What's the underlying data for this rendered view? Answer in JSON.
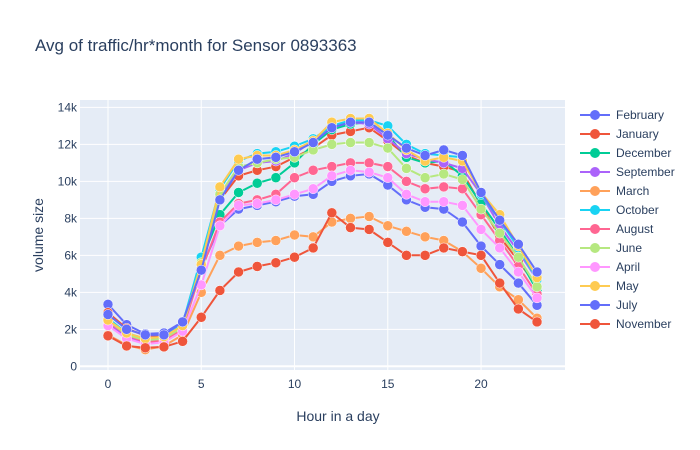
{
  "chart_data": {
    "type": "line",
    "title": "Avg of traffic/hr*month for Sensor 0893363",
    "xlabel": "Hour in a day",
    "ylabel": "volume size",
    "xlim": [
      -1.5,
      24.5
    ],
    "ylim": [
      -200,
      14400
    ],
    "xticks": [
      0,
      5,
      10,
      15,
      20
    ],
    "yticks": [
      0,
      2000,
      4000,
      6000,
      8000,
      10000,
      12000,
      14000
    ],
    "ytick_labels": [
      "0",
      "2k",
      "4k",
      "6k",
      "8k",
      "10k",
      "12k",
      "14k"
    ],
    "grid": true,
    "legend_position": "right",
    "x": [
      0,
      1,
      2,
      3,
      4,
      5,
      6,
      7,
      8,
      9,
      10,
      11,
      12,
      13,
      14,
      15,
      16,
      17,
      18,
      19,
      20,
      21,
      22,
      23
    ],
    "series": [
      {
        "name": "February",
        "color": "#636efa",
        "values": [
          3350,
          2250,
          1750,
          1800,
          2400,
          5300,
          7600,
          8500,
          8700,
          8900,
          9200,
          9300,
          10000,
          10300,
          10400,
          9800,
          9000,
          8600,
          8500,
          7800,
          6500,
          5500,
          4500,
          3300
        ]
      },
      {
        "name": "January",
        "color": "#ef553b",
        "values": [
          2900,
          2050,
          1650,
          1650,
          2300,
          5500,
          9000,
          10300,
          10600,
          10800,
          11300,
          11800,
          12500,
          12700,
          12900,
          12200,
          11400,
          11000,
          10800,
          10500,
          8700,
          7000,
          5700,
          4300
        ]
      },
      {
        "name": "December",
        "color": "#00cc96",
        "values": [
          2500,
          1700,
          1400,
          1500,
          2100,
          5700,
          8200,
          9400,
          9900,
          10200,
          11000,
          12000,
          12800,
          13100,
          13200,
          12500,
          11300,
          11000,
          11100,
          10300,
          8800,
          7400,
          5900,
          4100
        ]
      },
      {
        "name": "September",
        "color": "#ab63fa",
        "values": [
          2300,
          1600,
          1300,
          1400,
          2000,
          5600,
          9200,
          10600,
          11000,
          11100,
          11500,
          12200,
          12900,
          13200,
          13100,
          12300,
          11500,
          11200,
          11000,
          10700,
          9300,
          7600,
          6200,
          4700
        ]
      },
      {
        "name": "March",
        "color": "#ffa15a",
        "values": [
          1700,
          1150,
          900,
          1100,
          1700,
          4000,
          6000,
          6500,
          6700,
          6800,
          7100,
          7000,
          7800,
          8000,
          8100,
          7600,
          7300,
          7000,
          6800,
          6200,
          5300,
          4300,
          3600,
          2600
        ]
      },
      {
        "name": "October",
        "color": "#19d3f3",
        "values": [
          2600,
          1800,
          1500,
          1600,
          2300,
          5900,
          9600,
          11100,
          11500,
          11600,
          11900,
          12300,
          13000,
          13300,
          13300,
          13000,
          12000,
          11500,
          11400,
          11300,
          9300,
          7900,
          6400,
          4700
        ]
      },
      {
        "name": "August",
        "color": "#ff6692",
        "values": [
          2400,
          1700,
          1300,
          1400,
          2000,
          5200,
          7800,
          8800,
          9000,
          9300,
          10200,
          10600,
          10800,
          11000,
          11000,
          10800,
          10000,
          9600,
          9700,
          9600,
          8200,
          6800,
          5400,
          3900
        ]
      },
      {
        "name": "June",
        "color": "#b6e880",
        "values": [
          2500,
          1700,
          1400,
          1500,
          2100,
          5600,
          9300,
          10800,
          11000,
          11200,
          11300,
          11700,
          12000,
          12100,
          12100,
          11800,
          10700,
          10200,
          10400,
          10100,
          8500,
          7200,
          5900,
          4300
        ]
      },
      {
        "name": "April",
        "color": "#ff97ff",
        "values": [
          2200,
          1500,
          1200,
          1300,
          1900,
          4400,
          7600,
          8700,
          8800,
          9000,
          9300,
          9600,
          10300,
          10600,
          10500,
          10200,
          9300,
          8900,
          8900,
          8700,
          7400,
          6400,
          5100,
          3700
        ]
      },
      {
        "name": "May",
        "color": "#fecb52",
        "values": [
          2500,
          1800,
          1500,
          1600,
          2200,
          5500,
          9700,
          11200,
          11400,
          11400,
          11700,
          12200,
          13200,
          13400,
          13400,
          12600,
          11700,
          11100,
          11300,
          11100,
          9400,
          8200,
          6500,
          4800
        ]
      },
      {
        "name": "July",
        "color": "#636efa",
        "values": [
          2800,
          2000,
          1700,
          1700,
          2400,
          5200,
          9000,
          10600,
          11200,
          11300,
          11600,
          12100,
          12900,
          13200,
          13200,
          12500,
          11800,
          11400,
          11700,
          11400,
          9400,
          7900,
          6600,
          5100
        ]
      },
      {
        "name": "November",
        "color": "#ef553b",
        "values": [
          1650,
          1100,
          1000,
          1050,
          1350,
          2650,
          4100,
          5100,
          5400,
          5600,
          5900,
          6400,
          8300,
          7500,
          7400,
          6700,
          6000,
          6000,
          6400,
          6200,
          6000,
          4500,
          3100,
          2400
        ]
      }
    ]
  }
}
